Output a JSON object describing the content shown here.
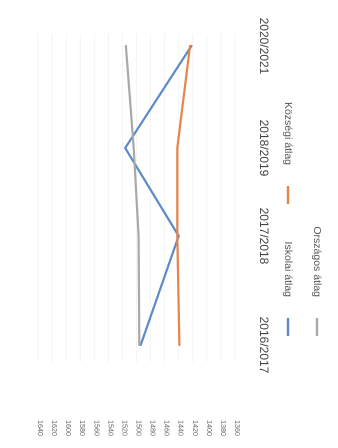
{
  "chart_data": {
    "type": "line",
    "categories": [
      "2016/2017",
      "2017/2018",
      "2018/2019",
      "2020/2021"
    ],
    "series": [
      {
        "name": "Iskolai átlag",
        "values": [
          1494,
          1440,
          1516,
          1422
        ],
        "color": "#5B8BC9"
      },
      {
        "name": "Községi átlag",
        "values": [
          1439,
          1442,
          1442,
          1424
        ],
        "color": "#E8834A"
      },
      {
        "name": "Országos átlag",
        "values": [
          1496,
          1497,
          1504,
          1515
        ],
        "color": "#A9A9A9"
      }
    ],
    "yticks": [
      1640,
      1620,
      1600,
      1580,
      1560,
      1540,
      1520,
      1500,
      1480,
      1460,
      1440,
      1420,
      1400,
      1380,
      1360
    ],
    "ylim": [
      1360,
      1640
    ],
    "grid": false,
    "legend_position": "bottom",
    "orientation": "rotated-90-clockwise"
  }
}
